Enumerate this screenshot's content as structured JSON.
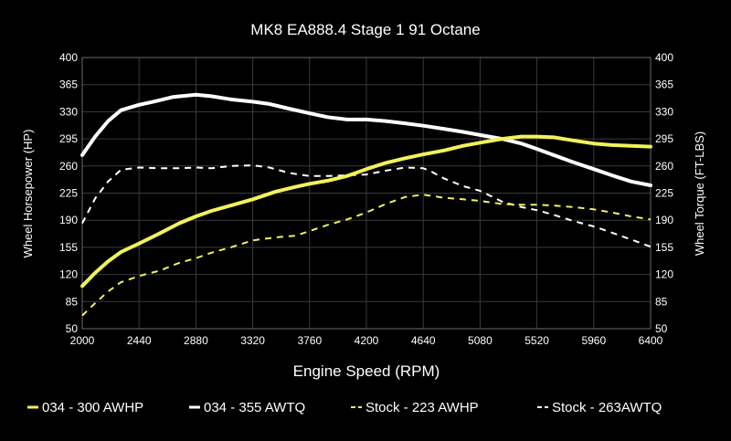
{
  "chart_data": {
    "type": "line",
    "title": "MK8 EA888.4 Stage 1 91 Octane",
    "xlabel": "Engine Speed (RPM)",
    "ylabel_left": "Wheel Horsepower (HP)",
    "ylabel_right": "Wheel Torque (FT-LBS)",
    "xlim": [
      2000,
      6400
    ],
    "ylim": [
      50,
      400
    ],
    "x_ticks": [
      2000,
      2440,
      2880,
      3320,
      3760,
      4200,
      4640,
      5080,
      5520,
      5960,
      6400
    ],
    "y_ticks": [
      50,
      85,
      120,
      155,
      190,
      225,
      260,
      295,
      330,
      365,
      400
    ],
    "legend_position": "bottom",
    "grid": true,
    "series": [
      {
        "name": "034 - 300 AWHP",
        "color": "#f2f25a",
        "dash": "solid",
        "x": [
          2000,
          2100,
          2200,
          2300,
          2440,
          2600,
          2750,
          2880,
          3000,
          3150,
          3320,
          3500,
          3650,
          3760,
          3900,
          4050,
          4200,
          4350,
          4500,
          4640,
          4800,
          4950,
          5080,
          5250,
          5400,
          5520,
          5650,
          5800,
          5960,
          6100,
          6250,
          6400
        ],
        "y": [
          105,
          122,
          137,
          149,
          160,
          173,
          186,
          195,
          202,
          209,
          217,
          227,
          233,
          237,
          241,
          247,
          256,
          264,
          270,
          275,
          280,
          286,
          290,
          295,
          298,
          298,
          297,
          293,
          289,
          287,
          286,
          285
        ]
      },
      {
        "name": "034 - 355 AWTQ",
        "color": "#ffffff",
        "dash": "solid",
        "x": [
          2000,
          2100,
          2200,
          2300,
          2440,
          2550,
          2700,
          2880,
          3000,
          3150,
          3320,
          3450,
          3600,
          3760,
          3900,
          4050,
          4200,
          4350,
          4500,
          4640,
          4800,
          4950,
          5080,
          5250,
          5400,
          5520,
          5650,
          5800,
          5960,
          6100,
          6250,
          6400
        ],
        "y": [
          274,
          298,
          318,
          332,
          339,
          343,
          349,
          352,
          350,
          346,
          343,
          340,
          334,
          328,
          323,
          320,
          320,
          318,
          315,
          312,
          308,
          304,
          300,
          295,
          289,
          282,
          274,
          265,
          256,
          248,
          240,
          235
        ]
      },
      {
        "name": "Stock - 223 AWHP",
        "color": "#f2f25a",
        "dash": "dashed",
        "x": [
          2000,
          2100,
          2200,
          2300,
          2440,
          2600,
          2750,
          2880,
          3000,
          3150,
          3320,
          3500,
          3650,
          3760,
          3900,
          4050,
          4200,
          4350,
          4500,
          4640,
          4800,
          4950,
          5080,
          5250,
          5400,
          5520,
          5650,
          5800,
          5960,
          6100,
          6250,
          6400
        ],
        "y": [
          67,
          83,
          98,
          110,
          118,
          125,
          135,
          141,
          148,
          155,
          164,
          168,
          170,
          176,
          184,
          191,
          200,
          211,
          220,
          223,
          219,
          217,
          215,
          211,
          210,
          210,
          209,
          207,
          204,
          200,
          195,
          191
        ]
      },
      {
        "name": "Stock - 263AWTQ",
        "color": "#ffffff",
        "dash": "dashed",
        "x": [
          2000,
          2100,
          2200,
          2300,
          2440,
          2600,
          2750,
          2880,
          3000,
          3150,
          3320,
          3450,
          3600,
          3760,
          3900,
          4050,
          4200,
          4350,
          4500,
          4640,
          4700,
          4800,
          4950,
          5080,
          5250,
          5400,
          5520,
          5650,
          5800,
          5960,
          6100,
          6250,
          6400
        ],
        "y": [
          186,
          218,
          240,
          255,
          258,
          257,
          257,
          258,
          257,
          260,
          261,
          258,
          251,
          247,
          247,
          248,
          249,
          254,
          258,
          257,
          253,
          244,
          234,
          228,
          214,
          207,
          203,
          197,
          189,
          182,
          174,
          165,
          156
        ]
      }
    ]
  }
}
